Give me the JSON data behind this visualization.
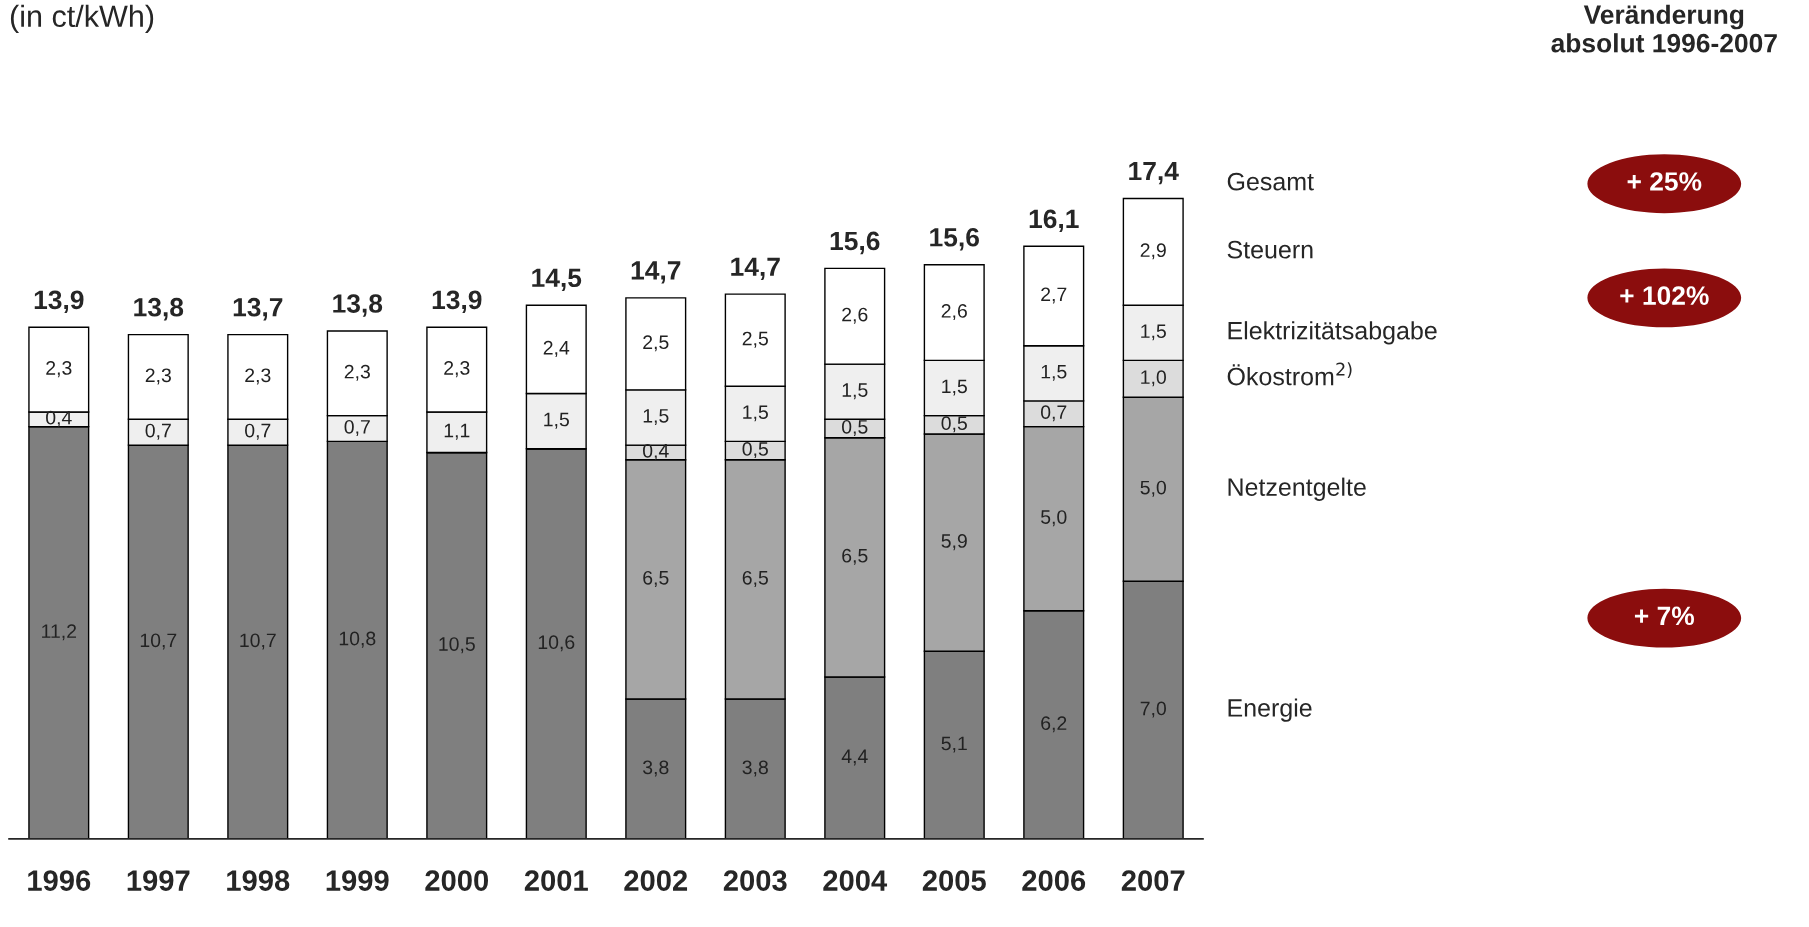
{
  "chart_data": {
    "type": "bar",
    "stacked": true,
    "title": "(in ct/kWh)",
    "categories": [
      "1996",
      "1997",
      "1998",
      "1999",
      "2000",
      "2001",
      "2002",
      "2003",
      "2004",
      "2005",
      "2006",
      "2007"
    ],
    "series": [
      {
        "name": "Energie",
        "color": "#7f7f7f",
        "values": [
          11.2,
          10.7,
          10.7,
          10.8,
          10.5,
          10.6,
          3.8,
          3.8,
          4.4,
          5.1,
          6.2,
          7.0
        ],
        "value_labels": [
          "11,2",
          "10,7",
          "10,7",
          "10,8",
          "10,5",
          "10,6",
          "3,8",
          "3,8",
          "4,4",
          "5,1",
          "6,2",
          "7,0"
        ]
      },
      {
        "name": "Netzentgelte",
        "color": "#a6a6a6",
        "values": [
          null,
          null,
          null,
          null,
          null,
          null,
          6.5,
          6.5,
          6.5,
          5.9,
          5.0,
          5.0
        ],
        "value_labels": [
          null,
          null,
          null,
          null,
          null,
          null,
          "6,5",
          "6,5",
          "6,5",
          "5,9",
          "5,0",
          "5,0"
        ]
      },
      {
        "name": "Ökostrom$^{2)}$",
        "color": "#dcdcdc",
        "values": [
          null,
          null,
          null,
          null,
          null,
          null,
          0.4,
          0.5,
          0.5,
          0.5,
          0.7,
          1.0
        ],
        "value_labels": [
          null,
          null,
          null,
          null,
          null,
          null,
          "0,4",
          "0,5",
          "0,5",
          "0,5",
          "0,7",
          "1,0"
        ]
      },
      {
        "name": "Elektrizitätsabgabe",
        "color": "#efefef",
        "values": [
          0.4,
          0.7,
          0.7,
          0.7,
          1.1,
          1.5,
          1.5,
          1.5,
          1.5,
          1.5,
          1.5,
          1.5
        ],
        "value_labels": [
          "0,4",
          "0,7",
          "0,7",
          "0,7",
          "1,1",
          "1,5",
          "1,5",
          "1,5",
          "1,5",
          "1,5",
          "1,5",
          "1,5"
        ]
      },
      {
        "name": "Steuern",
        "color": "#ffffff",
        "values": [
          2.3,
          2.3,
          2.3,
          2.3,
          2.3,
          2.4,
          2.5,
          2.5,
          2.6,
          2.6,
          2.7,
          2.9
        ],
        "value_labels": [
          "2,3",
          "2,3",
          "2,3",
          "2,3",
          "2,3",
          "2,4",
          "2,5",
          "2,5",
          "2,6",
          "2,6",
          "2,7",
          "2,9"
        ]
      }
    ],
    "totals": [
      "13,9",
      "13,8",
      "13,7",
      "13,8",
      "13,9",
      "14,5",
      "14,7",
      "14,7",
      "15,6",
      "15,6",
      "16,1",
      "17,4"
    ],
    "annotations": [
      "Gesamt",
      "Veränderung\nabsolut 1996-2007",
      "+ 25%",
      "+ 102%",
      "+ 7%"
    ]
  }
}
